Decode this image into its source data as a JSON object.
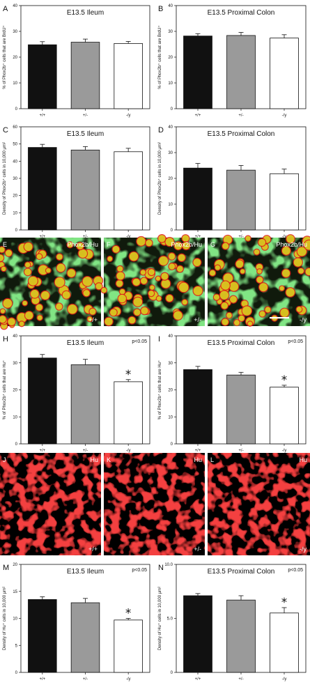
{
  "colors": {
    "black_bar": "#111111",
    "gray_bar": "#9a9a9a",
    "white_bar": "#ffffff",
    "green_cells": "#39c83a",
    "red_cells": "#e01818",
    "yellow_overlap": "#d8d020"
  },
  "chart_data": [
    {
      "panel": "A",
      "type": "bar",
      "title": "E13.5 Ileum",
      "ylabel": "% of Phox2b⁺ cells that are BrdU⁺",
      "categories": [
        "+/+",
        "+/-",
        "-/y"
      ],
      "values": [
        24.8,
        25.8,
        25.3
      ],
      "errors": [
        1.2,
        1.2,
        0.8
      ],
      "ylim": [
        0,
        40
      ],
      "yticks": [
        "0",
        "10",
        "20",
        "30",
        "40"
      ],
      "pvalue": "",
      "significant": [
        false,
        false,
        false
      ]
    },
    {
      "panel": "B",
      "type": "bar",
      "title": "E13.5 Proximal Colon",
      "ylabel": "% of Phox2b⁺ cells that are BrdU⁺",
      "categories": [
        "+/+",
        "+/-",
        "-/y"
      ],
      "values": [
        28.2,
        28.4,
        27.4
      ],
      "errors": [
        0.9,
        1.2,
        1.3
      ],
      "ylim": [
        0,
        40
      ],
      "yticks": [
        "0",
        "10",
        "20",
        "30",
        "40"
      ],
      "pvalue": "",
      "significant": [
        false,
        false,
        false
      ]
    },
    {
      "panel": "C",
      "type": "bar",
      "title": "E13.5 Ileum",
      "ylabel": "Density of Phox2b⁺ cells in 10,000 μm²",
      "categories": [
        "+/+",
        "+/-",
        "-/y"
      ],
      "values": [
        48,
        46.5,
        45.5
      ],
      "errors": [
        1.8,
        2.0,
        2.0
      ],
      "ylim": [
        0,
        60
      ],
      "yticks": [
        "0",
        "10",
        "20",
        "30",
        "40",
        "50",
        "60"
      ],
      "pvalue": "",
      "significant": [
        false,
        false,
        false
      ]
    },
    {
      "panel": "D",
      "type": "bar",
      "title": "E13.5 Proximal Colon",
      "ylabel": "Density of Phox2b⁺ cells in 10,000 μm²",
      "categories": [
        "+/+",
        "+/-",
        "-/y"
      ],
      "values": [
        24,
        23.2,
        21.8
      ],
      "errors": [
        1.8,
        1.8,
        1.8
      ],
      "ylim": [
        0,
        40
      ],
      "yticks": [
        "0",
        "10",
        "20",
        "30",
        "40"
      ],
      "pvalue": "",
      "significant": [
        false,
        false,
        false
      ]
    },
    {
      "panel": "H",
      "type": "bar",
      "title": "E13.5 Ileum",
      "ylabel": "% of Phox2b⁺ cells that are Hu⁺",
      "categories": [
        "+/+",
        "+/-",
        "-/y"
      ],
      "values": [
        31.8,
        29.3,
        23
      ],
      "errors": [
        1.3,
        2.0,
        0.8
      ],
      "ylim": [
        0,
        40
      ],
      "yticks": [
        "0",
        "10",
        "20",
        "30",
        "40"
      ],
      "pvalue": "p<0.05",
      "significant": [
        false,
        false,
        true
      ]
    },
    {
      "panel": "I",
      "type": "bar",
      "title": "E13.5 Proximal Colon",
      "ylabel": "% of Phox2b⁺ cells that are Hu⁺",
      "categories": [
        "+/+",
        "+/-",
        "-/y"
      ],
      "values": [
        27.5,
        25.5,
        21
      ],
      "errors": [
        1.2,
        1.0,
        0.7
      ],
      "ylim": [
        0,
        40
      ],
      "yticks": [
        "0",
        "10",
        "20",
        "30",
        "40"
      ],
      "pvalue": "p<0.05",
      "significant": [
        false,
        false,
        true
      ]
    },
    {
      "panel": "M",
      "type": "bar",
      "title": "E13.5 Ileum",
      "ylabel": "Density of Hu⁺ cells in 10,000 μm²",
      "categories": [
        "+/+",
        "+/-",
        "-/y"
      ],
      "values": [
        13.5,
        12.9,
        9.7
      ],
      "errors": [
        0.5,
        0.8,
        0.3
      ],
      "ylim": [
        0,
        20
      ],
      "yticks": [
        "0",
        "5",
        "10",
        "15",
        "20"
      ],
      "pvalue": "p<0.05",
      "significant": [
        false,
        false,
        true
      ]
    },
    {
      "panel": "N",
      "type": "bar",
      "title": "E13.5 Proximal Colon",
      "ylabel": "Density of Hu⁺ cells in 10,000 μm²",
      "categories": [
        "+/+",
        "+/-",
        "-/y"
      ],
      "values": [
        7.1,
        6.7,
        5.5
      ],
      "errors": [
        0.2,
        0.4,
        0.5
      ],
      "ylim": [
        0,
        10
      ],
      "yticks": [
        "0",
        "5.0",
        "10.0"
      ],
      "pvalue": "p<0.05",
      "significant": [
        false,
        false,
        true
      ]
    }
  ],
  "micrographs": [
    {
      "panel": "E",
      "stain": "Phox2b/Hu",
      "genotype": "+/+",
      "kind": "merge"
    },
    {
      "panel": "F",
      "stain": "Phox2b/Hu",
      "genotype": "+/-",
      "kind": "merge"
    },
    {
      "panel": "G",
      "stain": "Phox2b/Hu",
      "genotype": "-/y",
      "kind": "merge",
      "scale_bar": true
    },
    {
      "panel": "J",
      "stain": "Hu",
      "genotype": "+/+",
      "kind": "hu"
    },
    {
      "panel": "K",
      "stain": "Hu",
      "genotype": "+/-",
      "kind": "hu"
    },
    {
      "panel": "L",
      "stain": "Hu",
      "genotype": "-/y",
      "kind": "hu"
    }
  ]
}
